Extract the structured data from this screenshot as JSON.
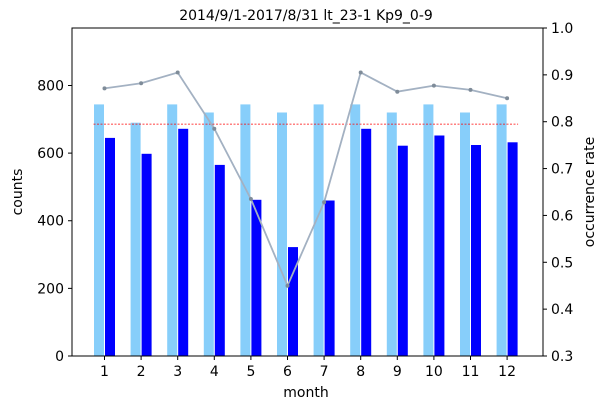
{
  "chart_data": {
    "type": "bar",
    "title": "2014/9/1-2017/8/31  lt_23-1  Kp9_0-9",
    "xlabel": "month",
    "ylabel_left": "counts",
    "ylabel_right": "occurrence rate",
    "categories": [
      "1",
      "2",
      "3",
      "4",
      "5",
      "6",
      "7",
      "8",
      "9",
      "10",
      "11",
      "12"
    ],
    "ylim_left": [
      0,
      970
    ],
    "ylim_right": [
      0.3,
      1.0
    ],
    "yticks_left": [
      "0",
      "200",
      "400",
      "600",
      "800"
    ],
    "yticks_right": [
      "0.3",
      "0.4",
      "0.5",
      "0.6",
      "0.7",
      "0.8",
      "0.9",
      "1.0"
    ],
    "grid": false,
    "series": [
      {
        "kind": "bar",
        "axis": "left",
        "color": "#87cefa",
        "values": [
          744,
          690,
          744,
          720,
          744,
          720,
          744,
          744,
          720,
          744,
          720,
          744
        ]
      },
      {
        "kind": "bar",
        "axis": "left",
        "color": "#0000ff",
        "values": [
          645,
          598,
          672,
          565,
          462,
          322,
          460,
          672,
          622,
          652,
          624,
          632
        ]
      },
      {
        "kind": "line",
        "axis": "right",
        "color": "#a3b1c2",
        "values": [
          0.871,
          0.882,
          0.905,
          0.785,
          0.635,
          0.45,
          0.628,
          0.905,
          0.864,
          0.877,
          0.868,
          0.85
        ]
      },
      {
        "kind": "reference-line",
        "axis": "right",
        "color": "#ff0000",
        "value": 0.795
      }
    ]
  }
}
